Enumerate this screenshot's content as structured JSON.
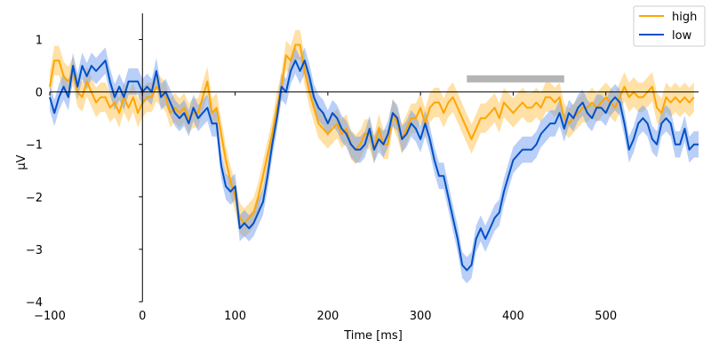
{
  "chart_data": {
    "type": "line",
    "xlabel": "Time [ms]",
    "ylabel": "µV",
    "xlim": [
      -100,
      600
    ],
    "ylim": [
      -4,
      1.5
    ],
    "x_ticks": [
      -100,
      0,
      100,
      200,
      300,
      400,
      500
    ],
    "y_ticks": [
      -4,
      -3,
      -2,
      -1,
      0,
      1
    ],
    "spines": "centered",
    "legend_position": "top-right",
    "x_step": 5,
    "series": [
      {
        "name": "high",
        "color": "#ffa500",
        "band_color": "#ffa500",
        "values": [
          0.1,
          0.6,
          0.6,
          0.3,
          0.2,
          0.4,
          0.0,
          -0.1,
          0.2,
          0.0,
          -0.2,
          -0.1,
          -0.1,
          -0.3,
          -0.2,
          -0.4,
          -0.1,
          -0.3,
          -0.1,
          -0.4,
          -0.2,
          -0.1,
          -0.1,
          0.1,
          0.0,
          -0.1,
          -0.4,
          -0.3,
          -0.4,
          -0.3,
          -0.5,
          -0.4,
          -0.4,
          -0.1,
          0.2,
          -0.4,
          -0.3,
          -0.8,
          -1.3,
          -1.7,
          -2.0,
          -2.4,
          -2.5,
          -2.4,
          -2.3,
          -2.0,
          -1.6,
          -1.2,
          -0.8,
          -0.3,
          0.1,
          0.7,
          0.6,
          0.9,
          0.9,
          0.4,
          0.0,
          -0.3,
          -0.6,
          -0.7,
          -0.8,
          -0.7,
          -0.6,
          -0.8,
          -0.7,
          -1.0,
          -1.1,
          -1.0,
          -0.8,
          -0.8,
          -1.1,
          -0.7,
          -1.0,
          -1.0,
          -0.4,
          -0.6,
          -0.9,
          -0.7,
          -0.5,
          -0.5,
          -0.3,
          -0.6,
          -0.3,
          -0.2,
          -0.2,
          -0.4,
          -0.2,
          -0.1,
          -0.3,
          -0.5,
          -0.7,
          -0.9,
          -0.7,
          -0.5,
          -0.5,
          -0.4,
          -0.3,
          -0.5,
          -0.2,
          -0.3,
          -0.4,
          -0.3,
          -0.2,
          -0.3,
          -0.3,
          -0.2,
          -0.3,
          -0.1,
          -0.1,
          -0.2,
          -0.1,
          -0.5,
          -0.6,
          -0.5,
          -0.4,
          -0.3,
          -0.3,
          -0.2,
          -0.3,
          -0.2,
          -0.1,
          -0.2,
          -0.3,
          -0.1,
          0.1,
          -0.1,
          0.0,
          -0.1,
          -0.1,
          0.0,
          0.1,
          -0.3,
          -0.4,
          -0.1,
          -0.2,
          -0.1,
          -0.2,
          -0.1,
          -0.2,
          -0.1
        ]
      },
      {
        "name": "low",
        "color": "#0050c8",
        "band_color": "#6495ed",
        "values": [
          -0.1,
          -0.4,
          -0.1,
          0.1,
          -0.1,
          0.5,
          0.1,
          0.5,
          0.3,
          0.5,
          0.4,
          0.5,
          0.6,
          0.2,
          -0.1,
          0.1,
          -0.1,
          0.2,
          0.2,
          0.2,
          0.0,
          0.1,
          0.0,
          0.4,
          -0.1,
          0.0,
          -0.2,
          -0.4,
          -0.5,
          -0.4,
          -0.6,
          -0.3,
          -0.5,
          -0.4,
          -0.3,
          -0.6,
          -0.6,
          -1.4,
          -1.8,
          -1.9,
          -1.8,
          -2.6,
          -2.5,
          -2.6,
          -2.5,
          -2.3,
          -2.1,
          -1.6,
          -1.0,
          -0.5,
          0.1,
          0.0,
          0.4,
          0.6,
          0.4,
          0.6,
          0.3,
          -0.1,
          -0.3,
          -0.4,
          -0.6,
          -0.4,
          -0.5,
          -0.7,
          -0.8,
          -1.0,
          -1.1,
          -1.1,
          -1.0,
          -0.7,
          -1.1,
          -0.9,
          -1.0,
          -0.8,
          -0.4,
          -0.5,
          -0.9,
          -0.8,
          -0.6,
          -0.7,
          -0.9,
          -0.6,
          -0.9,
          -1.3,
          -1.6,
          -1.6,
          -2.0,
          -2.4,
          -2.8,
          -3.3,
          -3.4,
          -3.3,
          -2.8,
          -2.6,
          -2.8,
          -2.6,
          -2.4,
          -2.3,
          -1.9,
          -1.6,
          -1.3,
          -1.2,
          -1.1,
          -1.1,
          -1.1,
          -1.0,
          -0.8,
          -0.7,
          -0.6,
          -0.6,
          -0.4,
          -0.7,
          -0.4,
          -0.5,
          -0.3,
          -0.2,
          -0.4,
          -0.5,
          -0.3,
          -0.3,
          -0.4,
          -0.2,
          -0.1,
          -0.2,
          -0.6,
          -1.1,
          -0.9,
          -0.6,
          -0.5,
          -0.6,
          -0.9,
          -1.0,
          -0.6,
          -0.5,
          -0.6,
          -1.0,
          -1.0,
          -0.7,
          -1.1,
          -1.0,
          -1.0
        ]
      }
    ],
    "significance_bar": {
      "x_start": 350,
      "x_end": 455,
      "y": 0.25,
      "color": "#b4b4b4"
    }
  }
}
